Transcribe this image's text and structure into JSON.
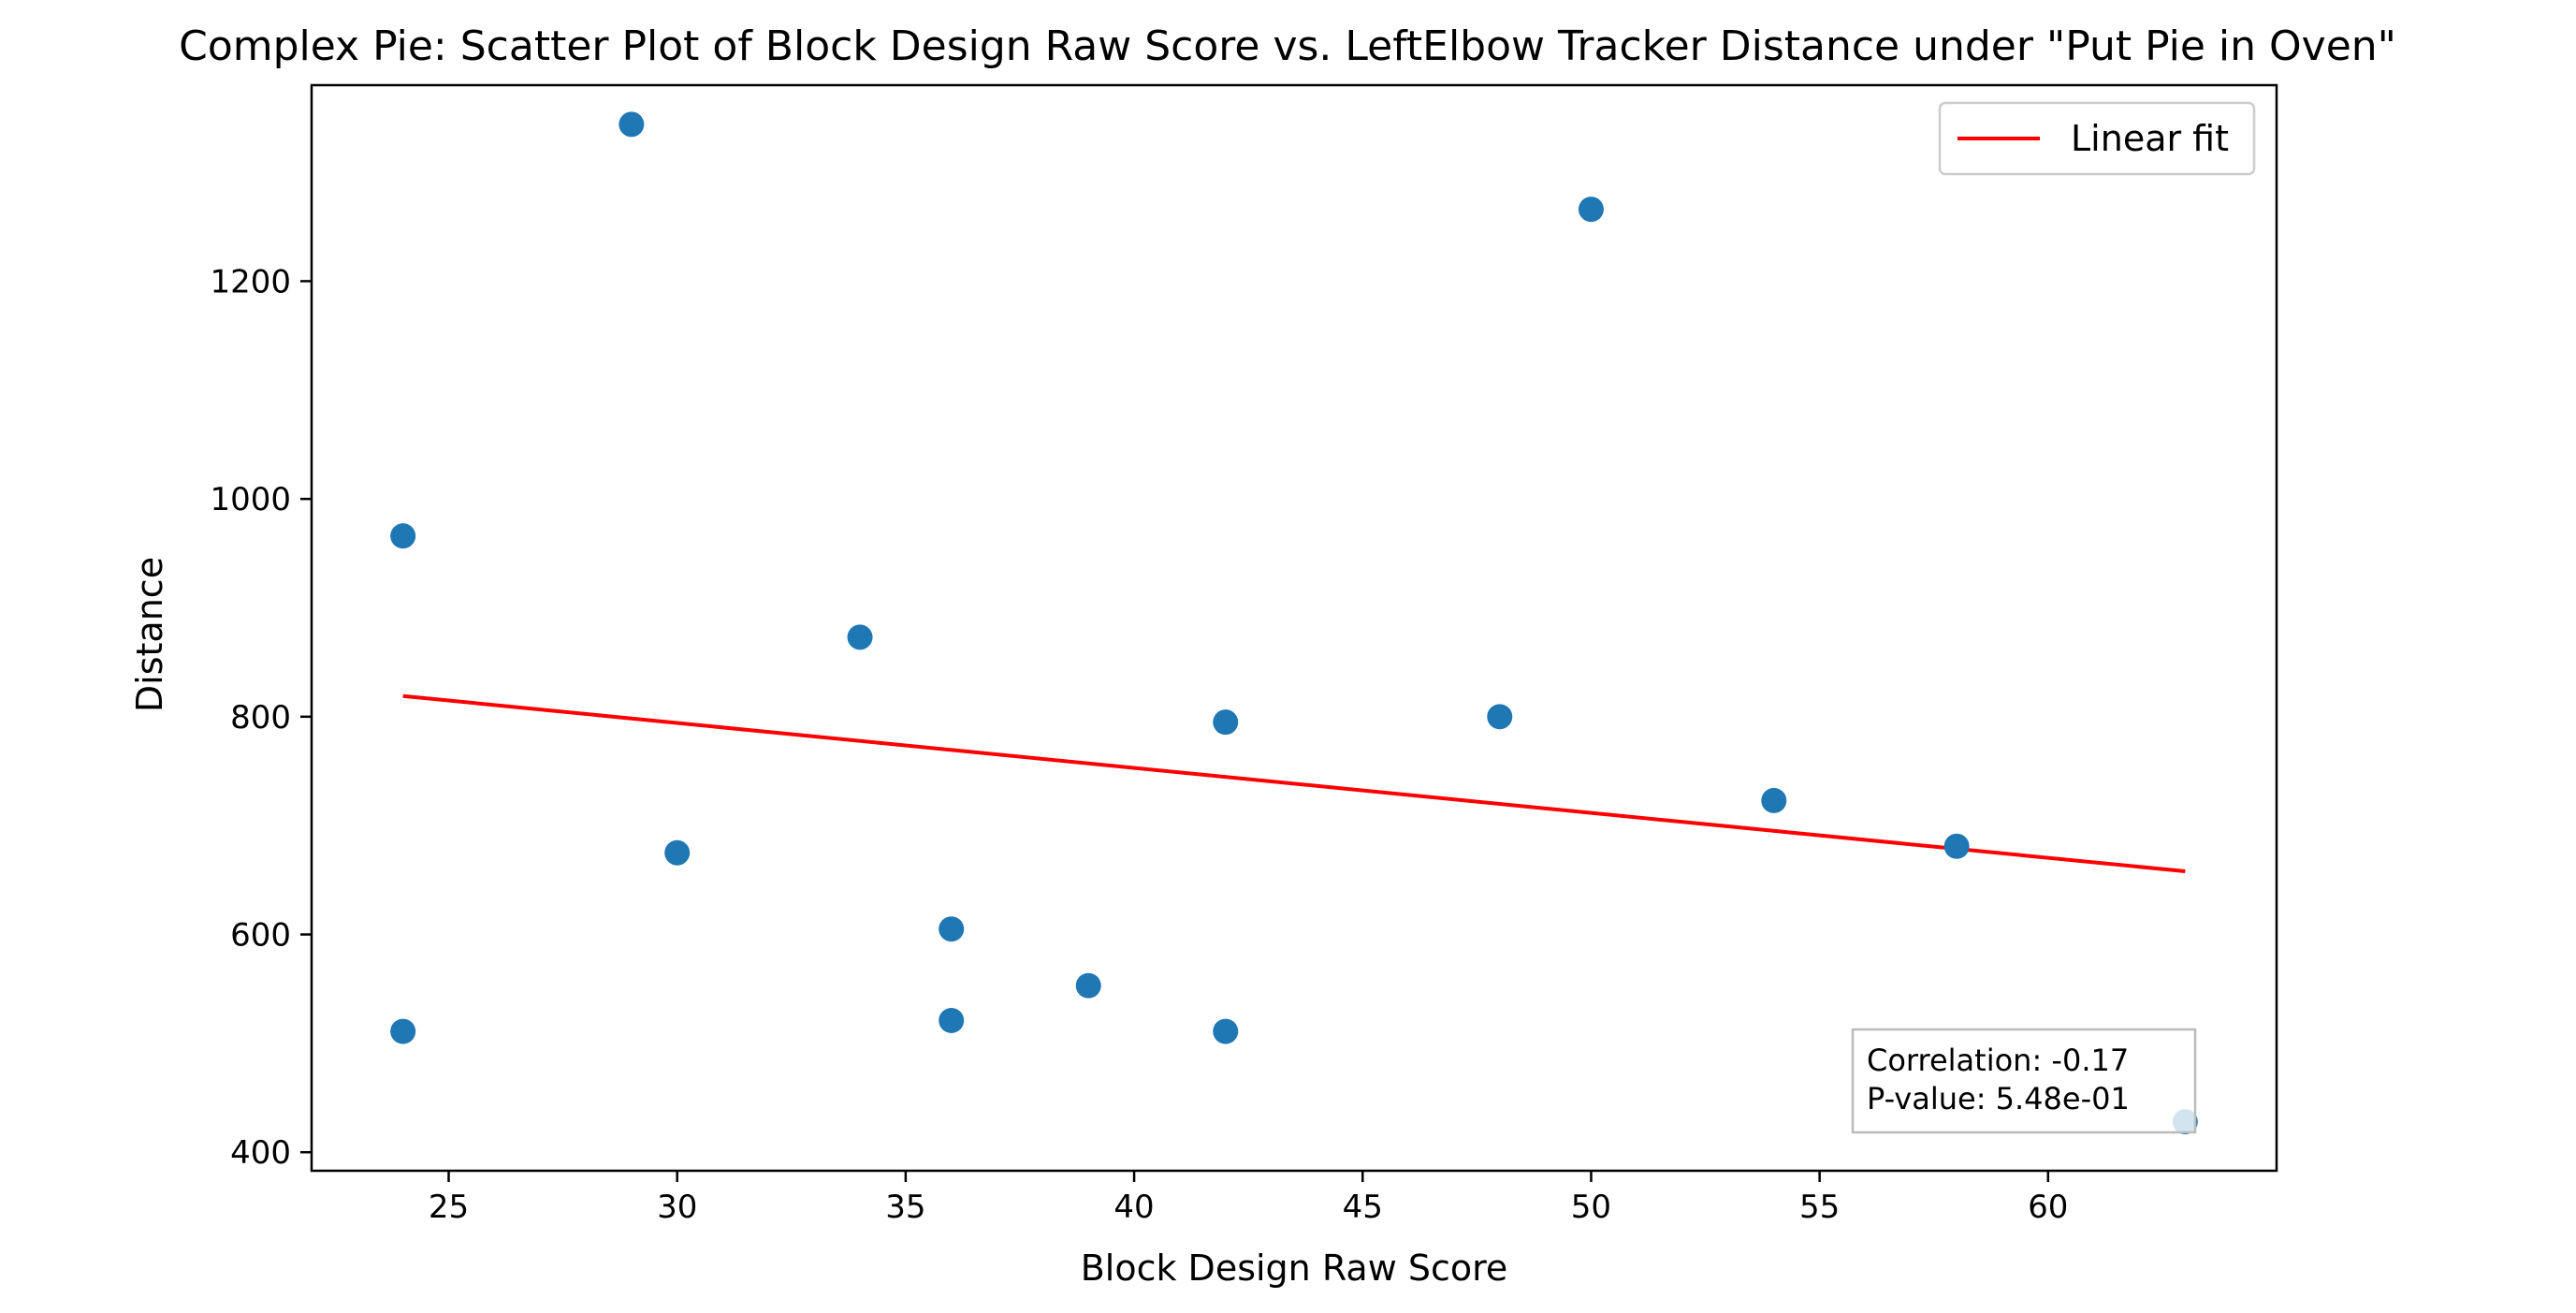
{
  "chart_data": {
    "type": "scatter",
    "title": "Complex Pie: Scatter Plot of Block Design Raw Score vs. LeftElbow Tracker Distance under \"Put Pie in Oven\"",
    "xlabel": "Block Design Raw Score",
    "ylabel": "Distance",
    "xlim": [
      22,
      65
    ],
    "ylim": [
      383,
      1380
    ],
    "xticks": [
      25,
      30,
      35,
      40,
      45,
      50,
      55,
      60
    ],
    "yticks": [
      400,
      600,
      800,
      1000,
      1200
    ],
    "grid": false,
    "legend": {
      "placement": "top-right",
      "entries": [
        "Linear fit"
      ]
    },
    "colors": {
      "points": "#1f77b4",
      "fit": "#ff0000"
    },
    "series": [
      {
        "type": "scatter",
        "x": [
          24,
          24,
          29,
          30,
          34,
          36,
          36,
          39,
          42,
          42,
          48,
          50,
          54,
          58,
          63
        ],
        "y": [
          966,
          511,
          1344,
          675,
          873,
          605,
          521,
          553,
          795,
          511,
          800,
          1266,
          723,
          681,
          428
        ]
      },
      {
        "name": "Linear fit",
        "type": "line",
        "x": [
          24,
          63
        ],
        "y": [
          819,
          658
        ]
      }
    ],
    "annotation": {
      "lines": [
        "Correlation: -0.17",
        "P-value: 5.48e-01"
      ],
      "placement": "bottom-right"
    }
  }
}
